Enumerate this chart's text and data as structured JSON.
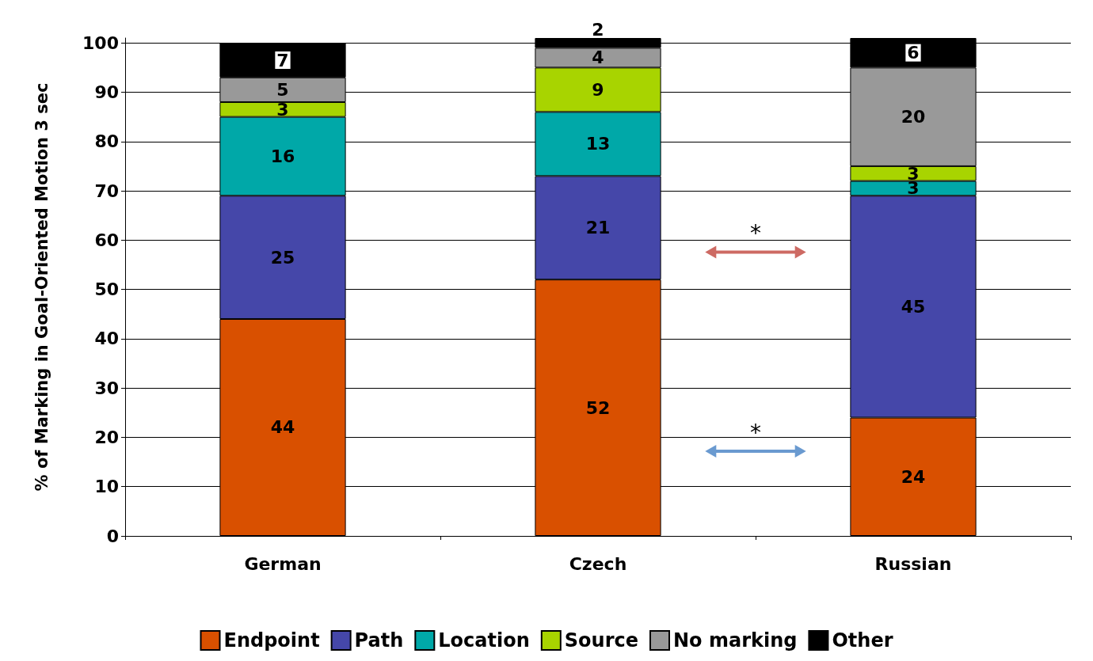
{
  "chart_data": {
    "type": "bar",
    "stacked": true,
    "ylabel": "% of Marking in Goal-Oriented Motion 3 sec",
    "categories": [
      "German",
      "Czech",
      "Russian"
    ],
    "series": [
      {
        "name": "Endpoint",
        "color": "#d95000",
        "values": [
          44,
          52,
          24
        ]
      },
      {
        "name": "Path",
        "color": "#4547a9",
        "values": [
          25,
          21,
          45
        ]
      },
      {
        "name": "Location",
        "color": "#00a8a8",
        "values": [
          16,
          13,
          3
        ]
      },
      {
        "name": "Source",
        "color": "#a8d400",
        "values": [
          3,
          9,
          3
        ]
      },
      {
        "name": "No marking",
        "color": "#999999",
        "values": [
          5,
          4,
          20
        ]
      },
      {
        "name": "Other",
        "color": "#000000",
        "values": [
          7,
          2,
          6
        ]
      }
    ],
    "ylim": [
      0,
      101
    ],
    "yticks": [
      0,
      10,
      20,
      30,
      40,
      50,
      60,
      70,
      80,
      90,
      100
    ],
    "grid": "y",
    "legend": "bottom",
    "data_labels": true,
    "annotations": [
      "*",
      "*"
    ]
  }
}
